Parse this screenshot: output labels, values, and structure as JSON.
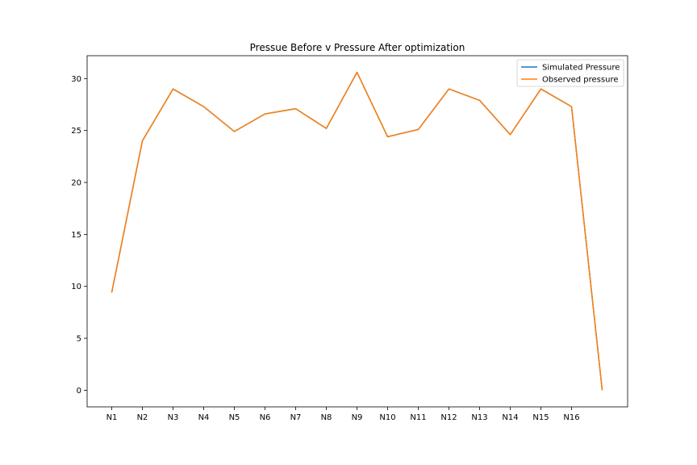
{
  "chart_data": {
    "type": "line",
    "title": "Pressue Before v Pressure After optimization",
    "xlabel": "",
    "ylabel": "",
    "categories": [
      "N1",
      "N2",
      "N3",
      "N4",
      "N5",
      "N6",
      "N7",
      "N8",
      "N9",
      "N10",
      "N11",
      "N12",
      "N13",
      "N14",
      "N15",
      "N16",
      ""
    ],
    "ylim": [
      -1.6,
      32.2
    ],
    "yticks": [
      0,
      5,
      10,
      15,
      20,
      25,
      30
    ],
    "grid": false,
    "legend_position": "top-right",
    "series": [
      {
        "name": "Simulated Pressure",
        "color": "#1f77b4",
        "values": [
          9.4,
          24.0,
          29.0,
          27.3,
          24.9,
          26.6,
          27.1,
          25.2,
          30.6,
          24.4,
          25.1,
          29.0,
          27.9,
          24.6,
          29.0,
          27.3,
          0.0
        ]
      },
      {
        "name": "Observed pressure",
        "color": "#ff7f0e",
        "values": [
          9.4,
          24.0,
          29.0,
          27.3,
          24.9,
          26.6,
          27.1,
          25.2,
          30.6,
          24.4,
          25.1,
          29.0,
          27.9,
          24.6,
          29.0,
          27.3,
          0.0
        ]
      }
    ]
  }
}
